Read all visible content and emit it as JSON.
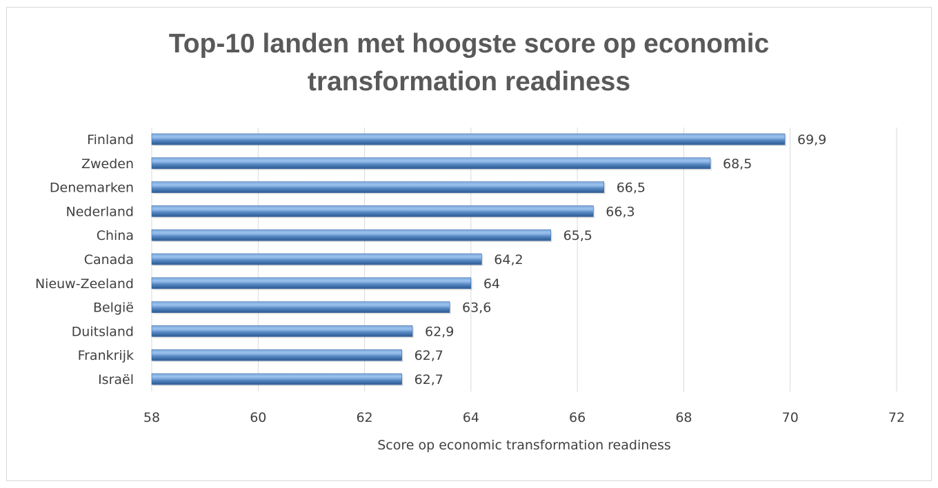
{
  "chart_data": {
    "type": "bar",
    "orientation": "horizontal",
    "title": "Top-10 landen met hoogste score op economic transformation readiness",
    "title_lines": [
      "Top-10 landen met hoogste score op economic",
      "transformation readiness"
    ],
    "xlabel": "Score op economic transformation readiness",
    "ylabel": "",
    "categories": [
      "Finland",
      "Zweden",
      "Denemarken",
      "Nederland",
      "China",
      "Canada",
      "Nieuw-Zeeland",
      "België",
      "Duitsland",
      "Frankrijk",
      "Israël"
    ],
    "values": [
      69.9,
      68.5,
      66.5,
      66.3,
      65.5,
      64.2,
      64,
      63.6,
      62.9,
      62.7,
      62.7
    ],
    "data_labels": [
      "69,9",
      "68,5",
      "66,5",
      "66,3",
      "65,5",
      "64,2",
      "64",
      "63,6",
      "62,9",
      "62,7",
      "62,7"
    ],
    "xlim": [
      58,
      72
    ],
    "xticks": [
      58,
      60,
      62,
      64,
      66,
      68,
      70,
      72
    ],
    "grid": "vertical",
    "legend": "none",
    "bar_color": "#4f81bd",
    "bar_highlight": "#9cc3ef"
  }
}
